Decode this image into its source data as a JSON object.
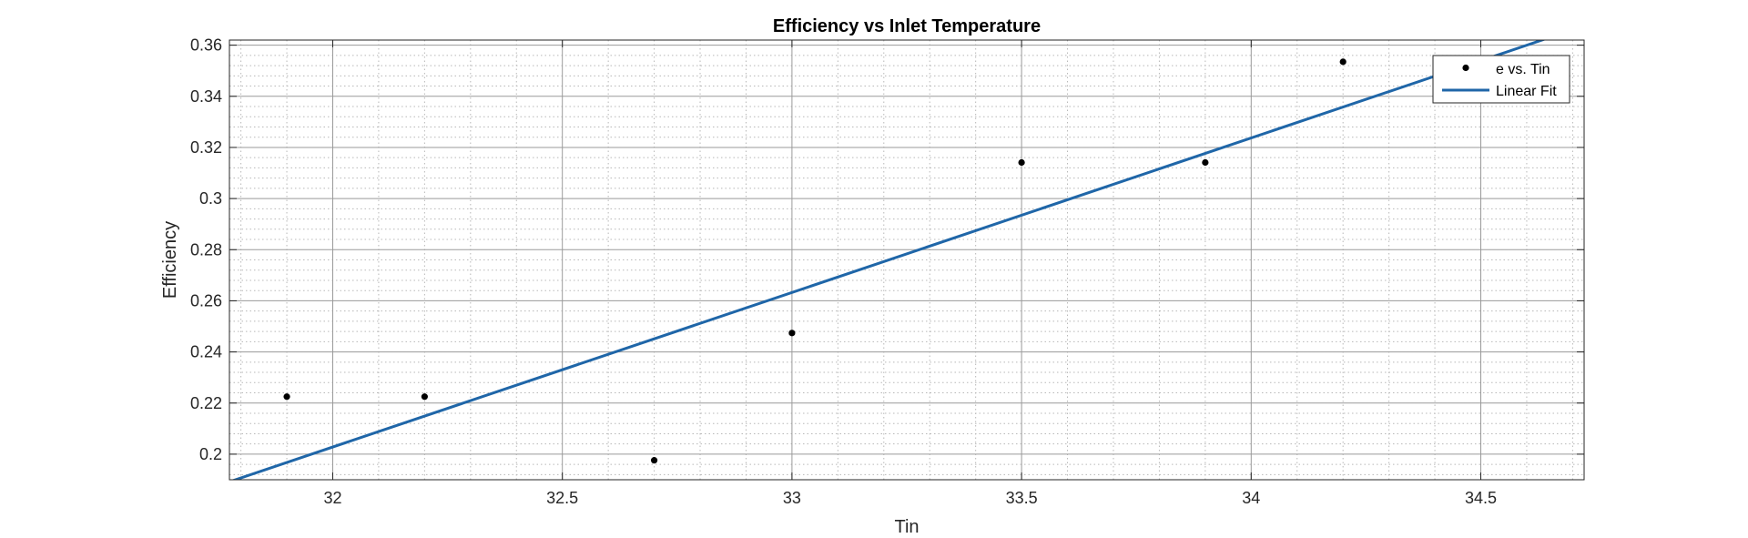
{
  "chart_data": {
    "type": "scatter",
    "title": "Efficiency vs Inlet Temperature",
    "xlabel": "Tin",
    "ylabel": "Efficiency",
    "xlim": [
      31.775,
      34.725
    ],
    "ylim": [
      0.19,
      0.362
    ],
    "xticks": [
      32,
      32.5,
      33,
      33.5,
      34,
      34.5
    ],
    "xtick_labels": [
      "32",
      "32.5",
      "33",
      "33.5",
      "34",
      "34.5"
    ],
    "yticks": [
      0.2,
      0.22,
      0.24,
      0.26,
      0.28,
      0.3,
      0.32,
      0.34,
      0.36
    ],
    "ytick_labels": [
      "0.2",
      "0.22",
      "0.24",
      "0.26",
      "0.28",
      "0.3",
      "0.32",
      "0.34",
      "0.36"
    ],
    "grid": true,
    "minor_grid": true,
    "legend_position": "top-right",
    "series": [
      {
        "name": "e vs. Tin",
        "kind": "scatter",
        "color": "#000000",
        "x": [
          31.9,
          32.2,
          32.7,
          33.0,
          33.5,
          33.9,
          34.2
        ],
        "y": [
          0.2225,
          0.2225,
          0.1976,
          0.2474,
          0.3141,
          0.3141,
          0.3535
        ]
      },
      {
        "name": "Linear Fit",
        "kind": "line",
        "color": "#1f66a8",
        "x": [
          31.78,
          34.64
        ],
        "y": [
          0.1895,
          0.3624
        ]
      }
    ]
  }
}
